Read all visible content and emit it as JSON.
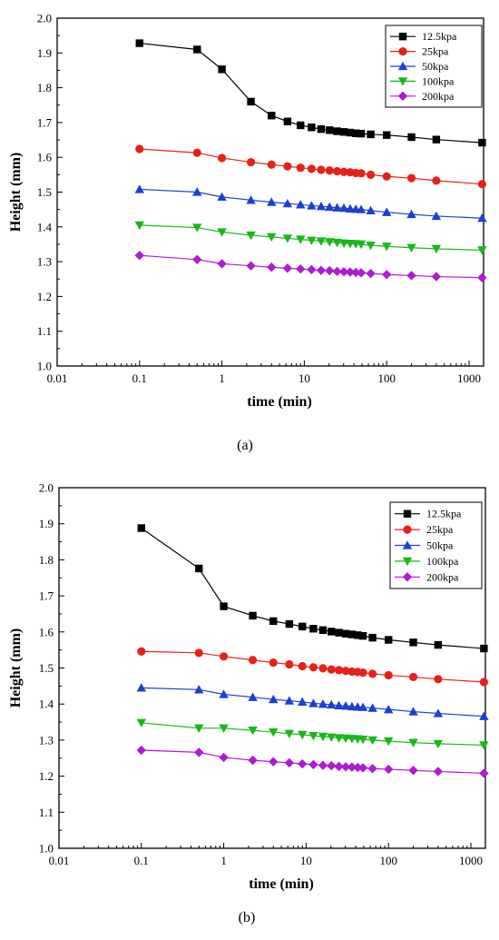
{
  "chart_data": [
    {
      "type": "line",
      "panel_label": "(a)",
      "xlabel": "time (min)",
      "ylabel": "Height (mm)",
      "xscale": "log",
      "xlim": [
        0.01,
        1500
      ],
      "ylim": [
        1.0,
        2.0
      ],
      "xticks": [
        "0.01",
        "0.1",
        "1",
        "10",
        "100",
        "1000"
      ],
      "yticks": [
        "1.0",
        "1.1",
        "1.2",
        "1.3",
        "1.4",
        "1.5",
        "1.6",
        "1.7",
        "1.8",
        "1.9",
        "2.0"
      ],
      "legend_position": "top-right",
      "x": [
        0.1,
        0.5,
        1,
        2.25,
        4,
        6.25,
        9,
        12.25,
        16,
        20.25,
        25,
        30.25,
        36,
        42.25,
        49,
        64,
        100,
        200,
        400,
        1440
      ],
      "series": [
        {
          "name": "12.5kpa",
          "color": "#000000",
          "marker": "square",
          "values": [
            1.928,
            1.91,
            1.853,
            1.76,
            1.72,
            1.703,
            1.692,
            1.686,
            1.681,
            1.678,
            1.675,
            1.673,
            1.671,
            1.669,
            1.668,
            1.666,
            1.664,
            1.658,
            1.651,
            1.642
          ]
        },
        {
          "name": "25kpa",
          "color": "#e8201a",
          "marker": "circle",
          "values": [
            1.624,
            1.613,
            1.598,
            1.586,
            1.579,
            1.574,
            1.57,
            1.567,
            1.564,
            1.562,
            1.56,
            1.558,
            1.557,
            1.555,
            1.554,
            1.55,
            1.545,
            1.54,
            1.533,
            1.523
          ]
        },
        {
          "name": "50kpa",
          "color": "#1c3fd4",
          "marker": "triangle-up",
          "values": [
            1.508,
            1.5,
            1.486,
            1.477,
            1.471,
            1.467,
            1.464,
            1.461,
            1.459,
            1.457,
            1.455,
            1.454,
            1.452,
            1.451,
            1.45,
            1.447,
            1.442,
            1.436,
            1.431,
            1.425
          ]
        },
        {
          "name": "100kpa",
          "color": "#18b818",
          "marker": "triangle-down",
          "values": [
            1.405,
            1.398,
            1.385,
            1.376,
            1.371,
            1.367,
            1.364,
            1.361,
            1.359,
            1.357,
            1.355,
            1.353,
            1.352,
            1.351,
            1.35,
            1.347,
            1.344,
            1.34,
            1.337,
            1.333
          ]
        },
        {
          "name": "200kpa",
          "color": "#b01ad4",
          "marker": "diamond",
          "values": [
            1.318,
            1.306,
            1.294,
            1.288,
            1.284,
            1.281,
            1.279,
            1.277,
            1.275,
            1.274,
            1.272,
            1.271,
            1.27,
            1.269,
            1.268,
            1.266,
            1.263,
            1.26,
            1.257,
            1.254
          ]
        }
      ]
    },
    {
      "type": "line",
      "panel_label": "(b)",
      "xlabel": "time (min)",
      "ylabel": "Height (mm)",
      "xscale": "log",
      "xlim": [
        0.01,
        1500
      ],
      "ylim": [
        1.0,
        2.0
      ],
      "xticks": [
        "0.01",
        "0.1",
        "1",
        "10",
        "100",
        "1000"
      ],
      "yticks": [
        "1.0",
        "1.1",
        "1.2",
        "1.3",
        "1.4",
        "1.5",
        "1.6",
        "1.7",
        "1.8",
        "1.9",
        "2.0"
      ],
      "legend_position": "top-right",
      "x": [
        0.1,
        0.5,
        1,
        2.25,
        4,
        6.25,
        9,
        12.25,
        16,
        20.25,
        25,
        30.25,
        36,
        42.25,
        49,
        64,
        100,
        200,
        400,
        1440
      ],
      "series": [
        {
          "name": "12.5kpa",
          "color": "#000000",
          "marker": "square",
          "values": [
            1.888,
            1.776,
            1.671,
            1.645,
            1.63,
            1.622,
            1.615,
            1.609,
            1.605,
            1.601,
            1.598,
            1.595,
            1.593,
            1.591,
            1.589,
            1.584,
            1.578,
            1.571,
            1.564,
            1.554
          ]
        },
        {
          "name": "25kpa",
          "color": "#e8201a",
          "marker": "circle",
          "values": [
            1.546,
            1.542,
            1.532,
            1.522,
            1.515,
            1.51,
            1.505,
            1.502,
            1.499,
            1.496,
            1.494,
            1.492,
            1.49,
            1.489,
            1.487,
            1.484,
            1.48,
            1.475,
            1.469,
            1.461
          ]
        },
        {
          "name": "50kpa",
          "color": "#1c3fd4",
          "marker": "triangle-up",
          "values": [
            1.445,
            1.44,
            1.427,
            1.419,
            1.413,
            1.409,
            1.406,
            1.402,
            1.4,
            1.398,
            1.396,
            1.395,
            1.393,
            1.392,
            1.391,
            1.389,
            1.385,
            1.379,
            1.374,
            1.366
          ]
        },
        {
          "name": "100kpa",
          "color": "#18b818",
          "marker": "triangle-down",
          "values": [
            1.348,
            1.333,
            1.333,
            1.327,
            1.322,
            1.318,
            1.315,
            1.312,
            1.31,
            1.308,
            1.306,
            1.305,
            1.304,
            1.303,
            1.302,
            1.3,
            1.297,
            1.293,
            1.29,
            1.286
          ]
        },
        {
          "name": "200kpa",
          "color": "#b01ad4",
          "marker": "diamond",
          "values": [
            1.272,
            1.266,
            1.252,
            1.244,
            1.24,
            1.237,
            1.234,
            1.232,
            1.23,
            1.229,
            1.227,
            1.226,
            1.225,
            1.224,
            1.223,
            1.221,
            1.219,
            1.216,
            1.213,
            1.208
          ]
        }
      ]
    }
  ]
}
